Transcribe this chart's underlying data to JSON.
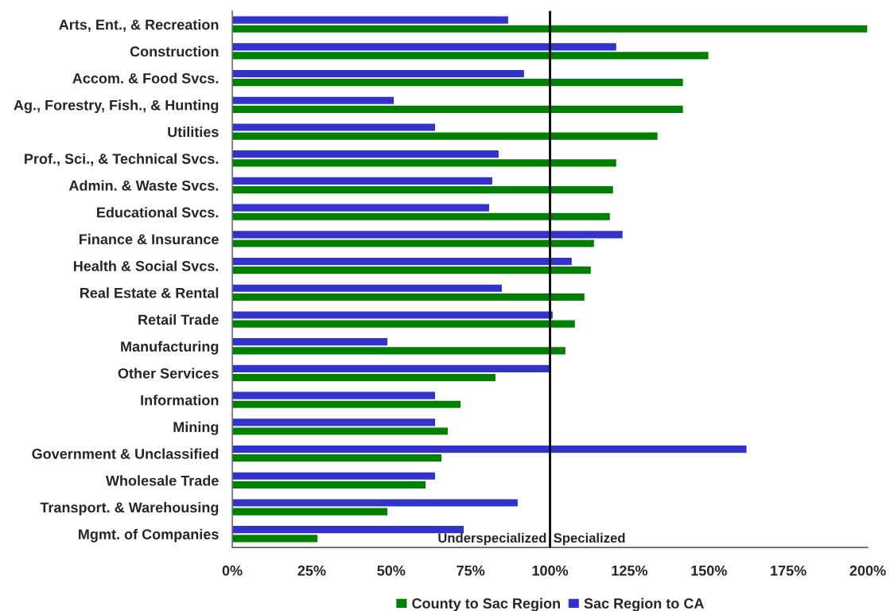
{
  "chart_data": {
    "type": "bar",
    "orientation": "horizontal",
    "categories": [
      "Arts, Ent., & Recreation",
      "Construction",
      "Accom. & Food Svcs.",
      "Ag., Forestry, Fish., & Hunting",
      "Utilities",
      "Prof., Sci., & Technical Svcs.",
      "Admin. & Waste Svcs.",
      "Educational Svcs.",
      "Finance & Insurance",
      "Health & Social Svcs.",
      "Real Estate & Rental",
      "Retail Trade",
      "Manufacturing",
      "Other Services",
      "Information",
      "Mining",
      "Government & Unclassified",
      "Wholesale Trade",
      "Transport. & Warehousing",
      "Mgmt. of Companies"
    ],
    "series": [
      {
        "name": "County to Sac Region",
        "color": "#008000",
        "values": [
          200,
          150,
          142,
          142,
          134,
          121,
          120,
          119,
          114,
          113,
          111,
          108,
          105,
          83,
          72,
          68,
          66,
          61,
          49,
          27
        ]
      },
      {
        "name": "Sac Region to CA",
        "color": "#3333cc",
        "values": [
          87,
          121,
          92,
          51,
          64,
          84,
          82,
          81,
          123,
          107,
          85,
          101,
          49,
          100,
          64,
          64,
          162,
          64,
          90,
          73
        ]
      }
    ],
    "xlim": [
      0,
      200
    ],
    "xticks": [
      {
        "value": 0,
        "label": "0%"
      },
      {
        "value": 25,
        "label": "25%"
      },
      {
        "value": 50,
        "label": "50%"
      },
      {
        "value": 75,
        "label": "75%"
      },
      {
        "value": 100,
        "label": "100%"
      },
      {
        "value": 125,
        "label": "125%"
      },
      {
        "value": 150,
        "label": "150%"
      },
      {
        "value": 175,
        "label": "175%"
      },
      {
        "value": 200,
        "label": "200%"
      }
    ],
    "ref_lines": [
      {
        "axis": "x",
        "value": 100,
        "color": "#000000"
      }
    ],
    "annotations": [
      {
        "text": "Underspecialized",
        "x": 100
      },
      {
        "text": "Specialized",
        "x": 100
      }
    ],
    "legend": "bottom",
    "grid": false
  }
}
